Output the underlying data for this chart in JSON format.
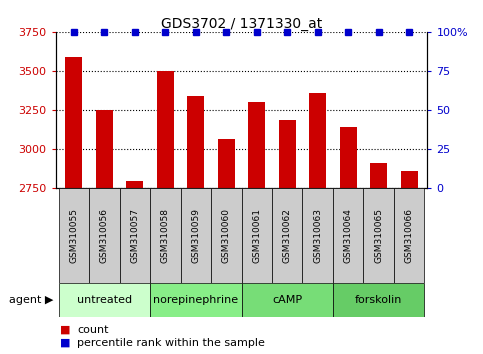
{
  "title": "GDS3702 / 1371330_at",
  "samples": [
    "GSM310055",
    "GSM310056",
    "GSM310057",
    "GSM310058",
    "GSM310059",
    "GSM310060",
    "GSM310061",
    "GSM310062",
    "GSM310063",
    "GSM310064",
    "GSM310065",
    "GSM310066"
  ],
  "counts": [
    3590,
    3250,
    2790,
    3500,
    3340,
    3060,
    3300,
    3185,
    3355,
    3140,
    2910,
    2855
  ],
  "ylim_left": [
    2750,
    3750
  ],
  "ylim_right": [
    0,
    100
  ],
  "yticks_left": [
    2750,
    3000,
    3250,
    3500,
    3750
  ],
  "yticks_right": [
    0,
    25,
    50,
    75,
    100
  ],
  "bar_color": "#cc0000",
  "dot_color": "#0000cc",
  "tick_label_color_left": "#cc0000",
  "tick_label_color_right": "#0000cc",
  "agent_groups": [
    {
      "label": "untreated",
      "start": 0,
      "end": 3,
      "color": "#ccffcc"
    },
    {
      "label": "norepinephrine",
      "start": 3,
      "end": 6,
      "color": "#88ee88"
    },
    {
      "label": "cAMP",
      "start": 6,
      "end": 9,
      "color": "#77dd77"
    },
    {
      "label": "forskolin",
      "start": 9,
      "end": 12,
      "color": "#66cc66"
    }
  ],
  "legend_count_color": "#cc0000",
  "legend_pct_color": "#0000cc",
  "bar_width": 0.55,
  "sample_box_color": "#cccccc"
}
